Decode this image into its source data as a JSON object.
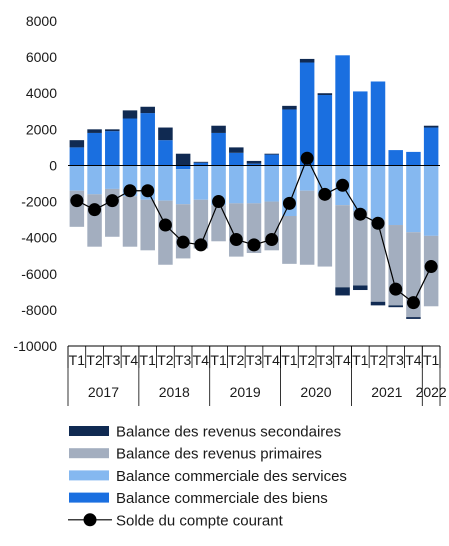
{
  "chart_data": {
    "type": "bar",
    "stacked": true,
    "title": "",
    "xlabel": "",
    "ylabel": "",
    "ylim": [
      -10000,
      8000
    ],
    "yticks": [
      8000,
      6000,
      4000,
      2000,
      0,
      -2000,
      -4000,
      -6000,
      -8000,
      -10000
    ],
    "grid": false,
    "legend_position": "bottom",
    "quarter_labels": [
      "T1",
      "T2",
      "T3",
      "T4",
      "T1",
      "T2",
      "T3",
      "T4",
      "T1",
      "T2",
      "T3",
      "T4",
      "T1",
      "T2",
      "T3",
      "T4",
      "T1",
      "T2",
      "T3",
      "T4",
      "T1"
    ],
    "year_groups": [
      {
        "label": "2017",
        "start": 0,
        "end": 3
      },
      {
        "label": "2018",
        "start": 4,
        "end": 7
      },
      {
        "label": "2019",
        "start": 8,
        "end": 11
      },
      {
        "label": "2020",
        "start": 12,
        "end": 15
      },
      {
        "label": "2021",
        "start": 16,
        "end": 19
      },
      {
        "label": "2022",
        "start": 20,
        "end": 20
      }
    ],
    "series": [
      {
        "name": "Balance commerciale des biens",
        "color": "#1a6fe0",
        "values": [
          1000,
          1800,
          1900,
          2600,
          2900,
          1400,
          -200,
          150,
          1800,
          700,
          100,
          600,
          3100,
          5700,
          3900,
          6100,
          4100,
          4650,
          850,
          750,
          2100
        ]
      },
      {
        "name": "Balance commerciale des services",
        "color": "#85b8f0",
        "values": [
          -1400,
          -1600,
          -1300,
          -1700,
          -1900,
          -1950,
          -1950,
          -1900,
          -2200,
          -2100,
          -2100,
          -2000,
          -2800,
          -1400,
          -1600,
          -2200,
          -2500,
          -3000,
          -3300,
          -3700,
          -3900
        ]
      },
      {
        "name": "Balance des revenus primaires",
        "color": "#a3aebf",
        "values": [
          -2000,
          -2900,
          -2650,
          -2800,
          -2800,
          -3550,
          -3000,
          -2700,
          -2000,
          -2950,
          -2750,
          -2700,
          -2650,
          -4100,
          -4000,
          -4550,
          -4150,
          -4550,
          -4450,
          -4700,
          -3900
        ]
      },
      {
        "name": "Balance des revenus secondaires",
        "color": "#102a52",
        "values": [
          400,
          200,
          100,
          450,
          350,
          700,
          650,
          50,
          400,
          300,
          150,
          50,
          200,
          200,
          100,
          -450,
          -250,
          -200,
          -100,
          -100,
          100
        ]
      }
    ],
    "line": {
      "name": "Solde du compte courant",
      "color": "#000000",
      "values": [
        -1950,
        -2450,
        -1950,
        -1400,
        -1400,
        -3300,
        -4250,
        -4400,
        -2000,
        -4100,
        -4400,
        -4100,
        -2100,
        400,
        -1600,
        -1100,
        -2700,
        -3200,
        -6850,
        -7600,
        -5600
      ]
    }
  },
  "legend": [
    {
      "label": "Balance des revenus secondaires",
      "color": "#102a52",
      "kind": "box"
    },
    {
      "label": "Balance des revenus primaires",
      "color": "#a3aebf",
      "kind": "box"
    },
    {
      "label": "Balance commerciale des services",
      "color": "#85b8f0",
      "kind": "box"
    },
    {
      "label": "Balance commerciale des biens",
      "color": "#1a6fe0",
      "kind": "box"
    },
    {
      "label": "Solde du compte courant",
      "color": "#000000",
      "kind": "line-marker"
    }
  ]
}
